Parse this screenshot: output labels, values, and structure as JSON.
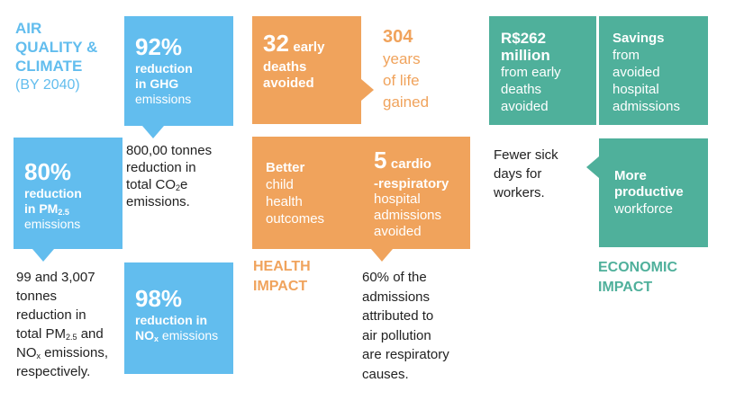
{
  "colors": {
    "blue": "#62bdee",
    "orange": "#f0a35c",
    "green": "#4fb09b"
  },
  "air": {
    "title_line1": "AIR",
    "title_line2": "QUALITY &",
    "title_line3": "CLIMATE",
    "subtitle": "(BY 2040)",
    "ghg_value": "92%",
    "ghg_line1": "reduction",
    "ghg_line2": "in GHG",
    "ghg_line3": "emissions",
    "ghg_note_line1": "800,00 tonnes",
    "ghg_note_line2": "reduction in",
    "ghg_note_line3a": "total CO",
    "ghg_note_line3_sub": "2",
    "ghg_note_line3b": "e",
    "ghg_note_line4": "emissions.",
    "pm_value": "80%",
    "pm_line1": "reduction",
    "pm_line2a": "in PM",
    "pm_line2_sub": "2.5",
    "pm_line3": "emissions",
    "pm_note_line1": "99 and 3,007",
    "pm_note_line2": "tonnes",
    "pm_note_line3": "reduction in",
    "pm_note_line4a": "total PM",
    "pm_note_line4_sub": "2.5",
    "pm_note_line4b": " and",
    "pm_note_line5a": "NO",
    "pm_note_line5_sub": "x",
    "pm_note_line5b": " emissions,",
    "pm_note_line6": "respectively.",
    "nox_value": "98%",
    "nox_line1": "reduction in",
    "nox_line2a": "NO",
    "nox_line2_sub": "x",
    "nox_line2b": " emissions"
  },
  "health": {
    "deaths_value": "32",
    "deaths_word1": "early",
    "deaths_line2": "deaths",
    "deaths_line3": "avoided",
    "years_value": "304",
    "years_line1": "years",
    "years_line2": "of life",
    "years_line3": "gained",
    "better_line1": "Better",
    "better_line2": "child",
    "better_line3": "health",
    "better_line4": "outcomes",
    "cardio_value": "5",
    "cardio_word1": "cardio",
    "cardio_line2": "-respiratory",
    "cardio_line3": "hospital",
    "cardio_line4": "admissions",
    "cardio_line5": "avoided",
    "label_line1": "HEALTH",
    "label_line2": "IMPACT",
    "note_line1": "60% of the",
    "note_line2": "admissions",
    "note_line3": "attributed to",
    "note_line4": "air pollution",
    "note_line5": "are respiratory",
    "note_line6": "causes."
  },
  "economic": {
    "money_line1": "R$262",
    "money_line2": "million",
    "money_line3": "from early",
    "money_line4": "deaths",
    "money_line5": "avoided",
    "savings_line1": "Savings",
    "savings_line2": "from",
    "savings_line3": "avoided",
    "savings_line4": "hospital",
    "savings_line5": "admissions",
    "sick_line1": "Fewer sick",
    "sick_line2": "days for",
    "sick_line3": "workers.",
    "prod_line1": "More",
    "prod_line2": "productive",
    "prod_line3": "workforce",
    "label_line1": "ECONOMIC",
    "label_line2": "IMPACT"
  }
}
